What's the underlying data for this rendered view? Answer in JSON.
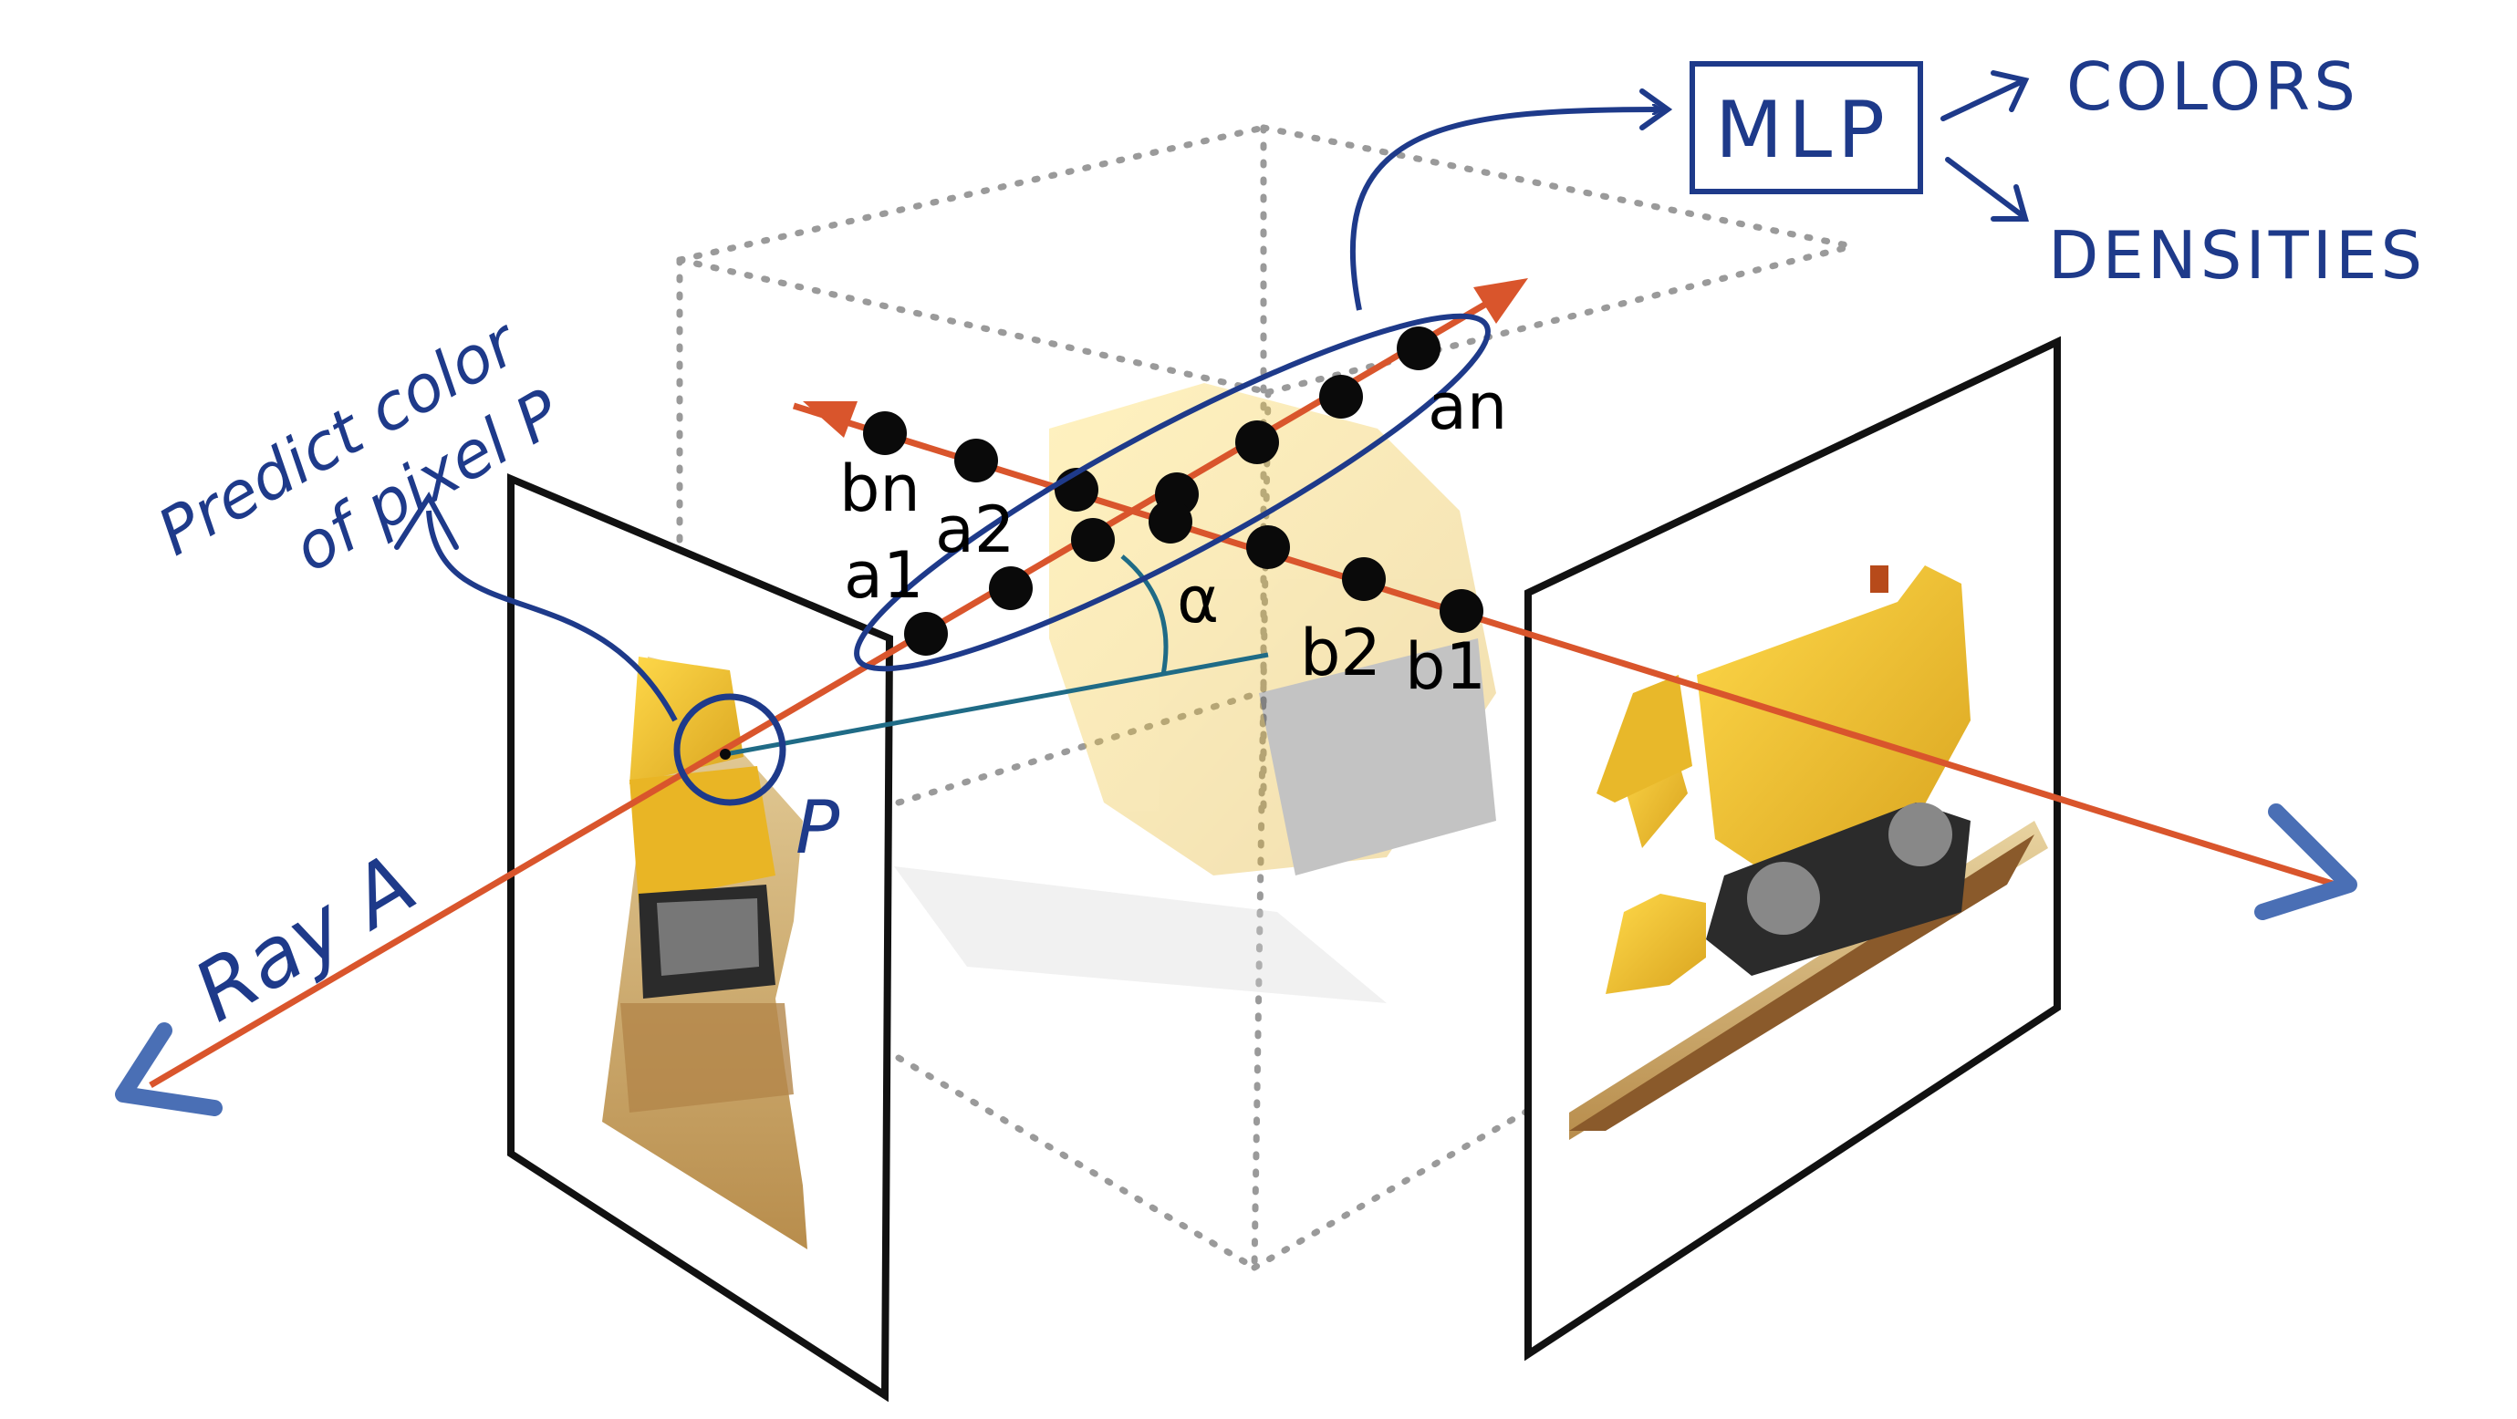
{
  "labels": {
    "predict_line1": "Predict color",
    "predict_line2": "of pixel P",
    "mlp": "MLP",
    "colors": "COLORS",
    "densities": "DENSITIES",
    "ray_a": "Ray A",
    "pixel_p": "P",
    "alpha": "α",
    "an": "an",
    "bn": "bn",
    "a2": "a2",
    "a1": "a1",
    "b2": "b2",
    "b1": "b1"
  },
  "colors": {
    "ray": "#d9552c",
    "ink": "#1e3a8a",
    "arrow_head": "#4a6fb5",
    "angle_line": "#1f6b86",
    "cube": "#9a9a9a",
    "frame": "#111111",
    "sample_point": "#0a0a0a",
    "bulldozer_yellow": "#f2c12e",
    "tread": "#2b2b2b",
    "baseplate": "#c9a96b"
  }
}
